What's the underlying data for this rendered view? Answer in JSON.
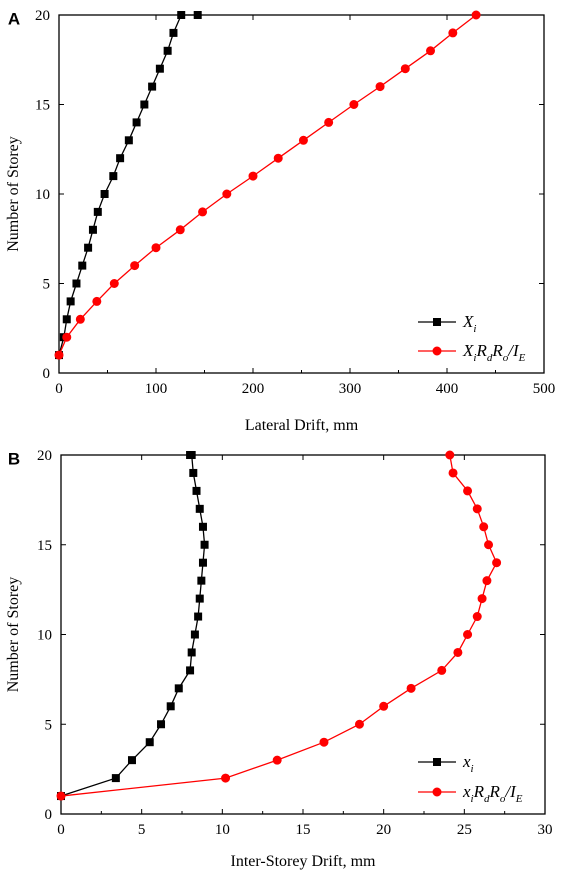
{
  "chart_data": [
    {
      "panel_label": "A",
      "type": "line",
      "xlabel": "Lateral Drift, mm",
      "ylabel": "Number of Storey",
      "xlim": [
        0,
        500
      ],
      "ylim": [
        0,
        20
      ],
      "xticks": [
        "0",
        "100",
        "200",
        "300",
        "400",
        "500"
      ],
      "yticks": [
        "0",
        "5",
        "10",
        "15",
        "20"
      ],
      "grid": false,
      "legend_position": "bottom-right",
      "series": [
        {
          "legend": [
            {
              "t": "X",
              "s": false
            },
            {
              "t": "i",
              "s": true
            }
          ],
          "color": "#000000",
          "marker": "square",
          "x": [
            0,
            5,
            8,
            12,
            18,
            24,
            30,
            35,
            40,
            47,
            56,
            63,
            72,
            80,
            88,
            96,
            104,
            112,
            118,
            126,
            143
          ],
          "y": [
            1,
            2,
            3,
            4,
            5,
            6,
            7,
            8,
            9,
            10,
            11,
            12,
            13,
            14,
            15,
            16,
            17,
            18,
            19,
            20,
            20
          ]
        },
        {
          "legend": [
            {
              "t": "X",
              "s": false
            },
            {
              "t": "i",
              "s": true
            },
            {
              "t": "R",
              "s": false
            },
            {
              "t": "d",
              "s": true
            },
            {
              "t": "R",
              "s": false
            },
            {
              "t": "o",
              "s": true
            },
            {
              "t": "/I",
              "s": false
            },
            {
              "t": "E",
              "s": true
            }
          ],
          "color": "#ff0000",
          "marker": "circle",
          "x": [
            0,
            8,
            22,
            39,
            57,
            78,
            100,
            125,
            148,
            173,
            200,
            226,
            252,
            278,
            304,
            331,
            357,
            383,
            406,
            430
          ],
          "y": [
            1,
            2,
            3,
            4,
            5,
            6,
            7,
            8,
            9,
            10,
            11,
            12,
            13,
            14,
            15,
            16,
            17,
            18,
            19,
            20
          ]
        }
      ]
    },
    {
      "panel_label": "B",
      "type": "line",
      "xlabel": "Inter-Storey Drift, mm",
      "ylabel": "Number of Storey",
      "xlim": [
        0,
        30
      ],
      "ylim": [
        0,
        20
      ],
      "xticks": [
        "0",
        "5",
        "10",
        "15",
        "20",
        "25",
        "30"
      ],
      "yticks": [
        "0",
        "5",
        "10",
        "15",
        "20"
      ],
      "grid": false,
      "legend_position": "bottom-right",
      "series": [
        {
          "legend": [
            {
              "t": "x",
              "s": false
            },
            {
              "t": "i",
              "s": true
            }
          ],
          "color": "#000000",
          "marker": "square",
          "x": [
            0,
            3.4,
            4.4,
            5.5,
            6.2,
            6.8,
            7.3,
            8.0,
            8.1,
            8.3,
            8.5,
            8.6,
            8.7,
            8.8,
            8.9,
            8.8,
            8.6,
            8.4,
            8.2,
            8.1,
            8.0
          ],
          "y": [
            1,
            2,
            3,
            4,
            5,
            6,
            7,
            8,
            9,
            10,
            11,
            12,
            13,
            14,
            15,
            16,
            17,
            18,
            19,
            20,
            20
          ]
        },
        {
          "legend": [
            {
              "t": "x",
              "s": false
            },
            {
              "t": "i",
              "s": true
            },
            {
              "t": "R",
              "s": false
            },
            {
              "t": "d",
              "s": true
            },
            {
              "t": "R",
              "s": false
            },
            {
              "t": "o",
              "s": true
            },
            {
              "t": "/I",
              "s": false
            },
            {
              "t": "E",
              "s": true
            }
          ],
          "color": "#ff0000",
          "marker": "circle",
          "x": [
            0,
            10.2,
            13.4,
            16.3,
            18.5,
            20.0,
            21.7,
            23.6,
            24.6,
            25.2,
            25.8,
            26.1,
            26.4,
            27.0,
            26.5,
            26.2,
            25.8,
            25.2,
            24.3,
            24.1
          ],
          "y": [
            1,
            2,
            3,
            4,
            5,
            6,
            7,
            8,
            9,
            10,
            11,
            12,
            13,
            14,
            15,
            16,
            17,
            18,
            19,
            20
          ]
        }
      ]
    }
  ]
}
